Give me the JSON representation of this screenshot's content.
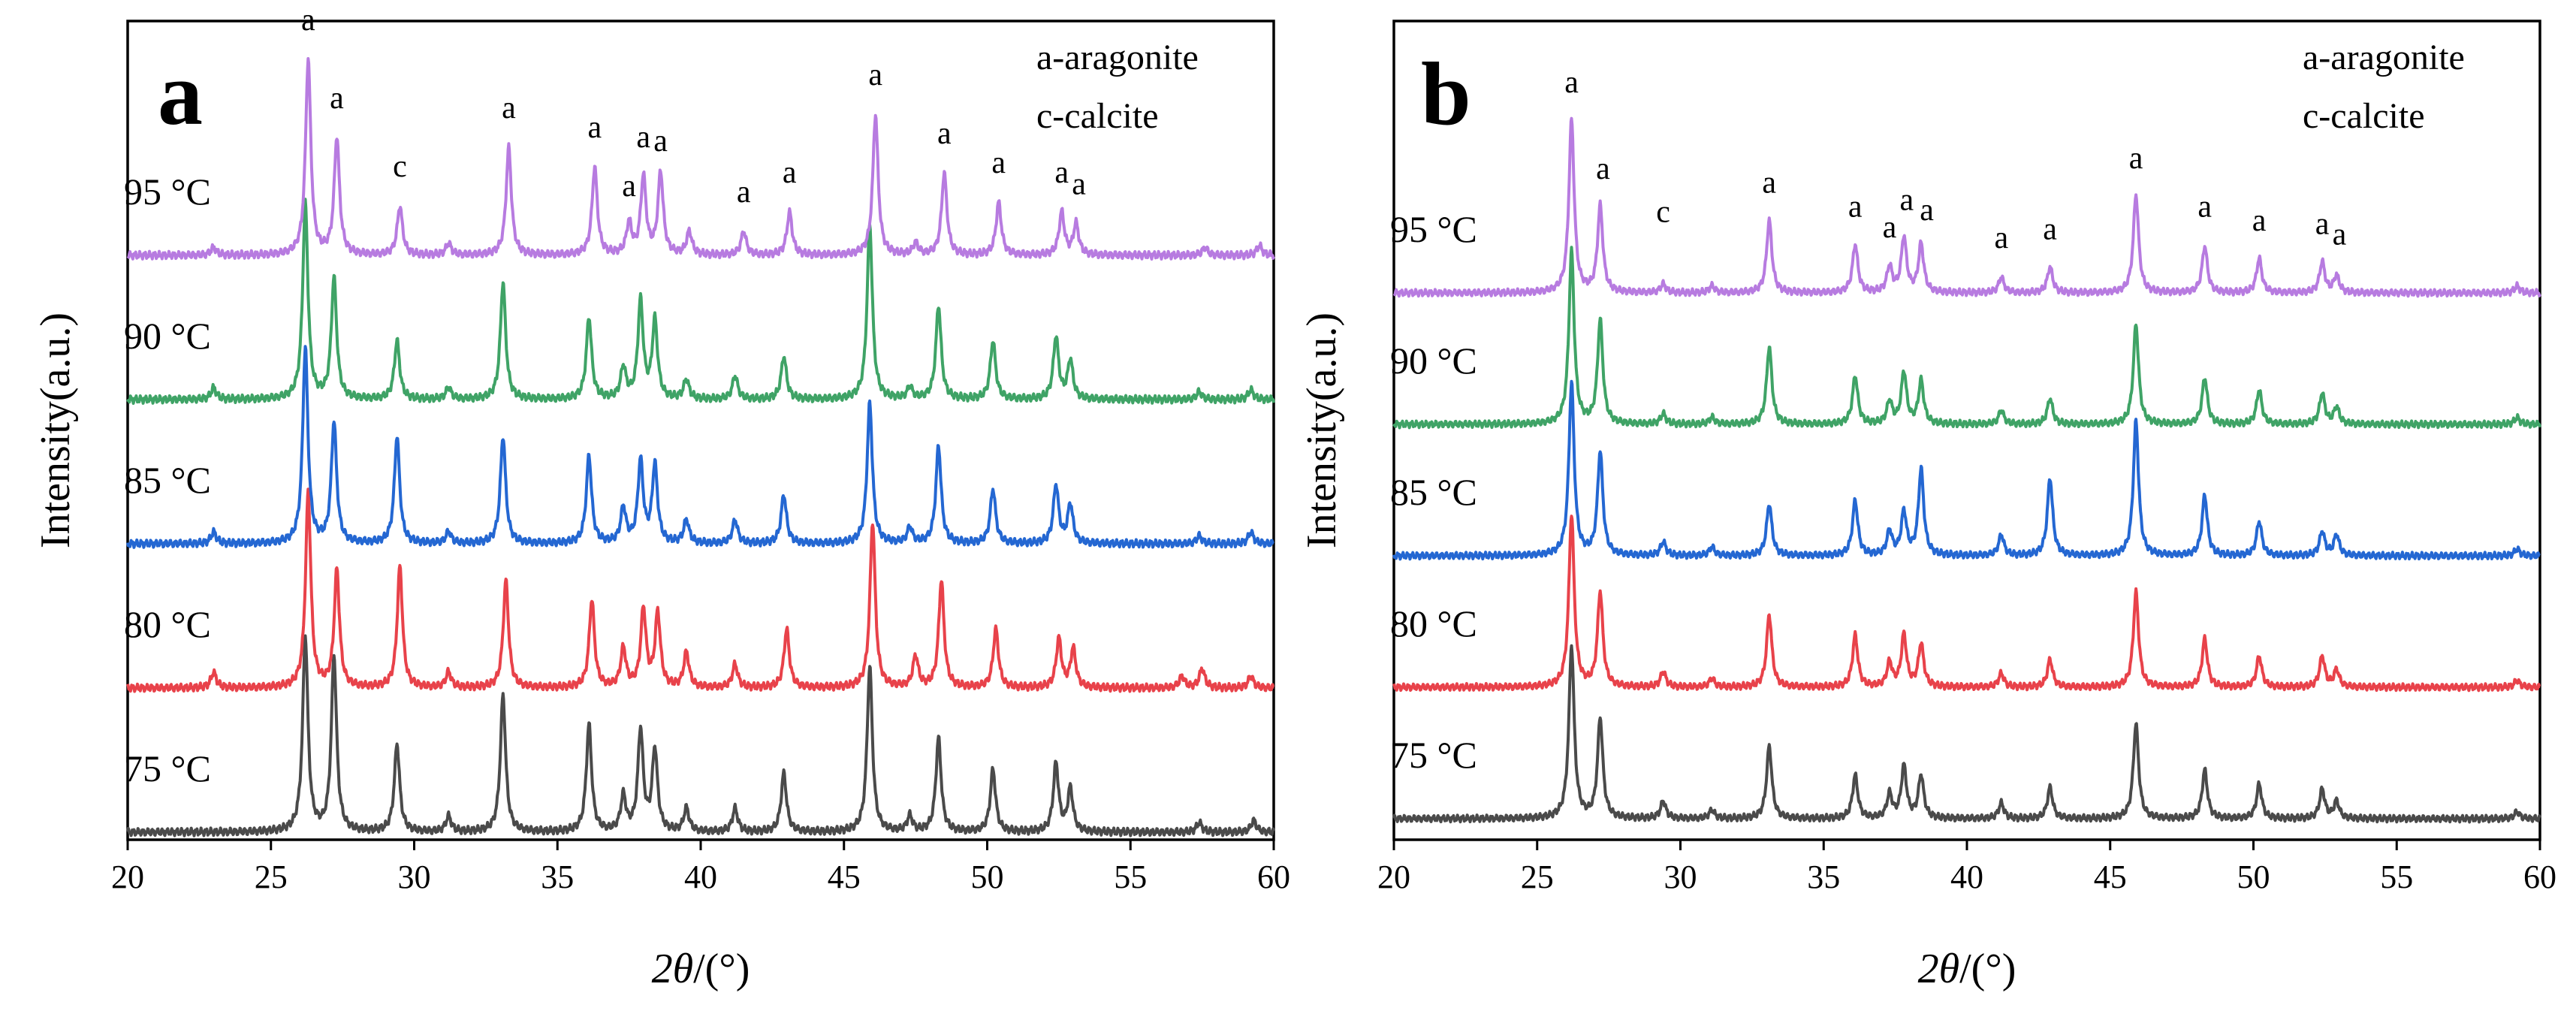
{
  "chart_data": [
    {
      "type": "line",
      "panel_label": "a",
      "xlabel_main": "2",
      "xlabel_theta": "θ",
      "xlabel_unit": "/(°)",
      "ylabel": "Intensity(a.u.)",
      "xlim": [
        20,
        60
      ],
      "xticks": [
        20,
        25,
        30,
        35,
        40,
        45,
        50,
        55,
        60
      ],
      "legend": [
        "a-aragonite",
        "c-calcite"
      ],
      "series": [
        {
          "name": "75 °C",
          "label": "75 °C",
          "color": "#4a4a4a",
          "offset": 0.0,
          "peaks": [
            [
              26.2,
              1.0
            ],
            [
              27.2,
              0.9
            ],
            [
              29.4,
              0.45
            ],
            [
              31.2,
              0.08
            ],
            [
              33.1,
              0.7
            ],
            [
              36.1,
              0.55
            ],
            [
              37.3,
              0.18
            ],
            [
              37.9,
              0.52
            ],
            [
              38.4,
              0.42
            ],
            [
              39.5,
              0.12
            ],
            [
              41.2,
              0.12
            ],
            [
              42.9,
              0.3
            ],
            [
              45.9,
              0.85
            ],
            [
              47.3,
              0.08
            ],
            [
              48.3,
              0.48
            ],
            [
              50.2,
              0.32
            ],
            [
              52.4,
              0.35
            ],
            [
              52.9,
              0.22
            ],
            [
              57.4,
              0.05
            ],
            [
              59.3,
              0.06
            ]
          ]
        },
        {
          "name": "80 °C",
          "label": "80 °C",
          "color": "#e8424a",
          "offset": 1.0,
          "peaks": [
            [
              23.0,
              0.08
            ],
            [
              26.3,
              1.0
            ],
            [
              27.3,
              0.6
            ],
            [
              29.5,
              0.62
            ],
            [
              31.2,
              0.08
            ],
            [
              33.2,
              0.55
            ],
            [
              36.2,
              0.45
            ],
            [
              37.3,
              0.2
            ],
            [
              38.0,
              0.4
            ],
            [
              38.5,
              0.38
            ],
            [
              39.5,
              0.18
            ],
            [
              41.2,
              0.12
            ],
            [
              43.0,
              0.3
            ],
            [
              46.0,
              0.85
            ],
            [
              47.5,
              0.16
            ],
            [
              48.4,
              0.55
            ],
            [
              50.3,
              0.3
            ],
            [
              52.5,
              0.25
            ],
            [
              53.0,
              0.2
            ],
            [
              56.8,
              0.06
            ],
            [
              57.5,
              0.1
            ],
            [
              59.2,
              0.06
            ]
          ]
        },
        {
          "name": "85 °C",
          "label": "85 °C",
          "color": "#2467d2",
          "offset": 2.0,
          "peaks": [
            [
              23.0,
              0.06
            ],
            [
              26.2,
              1.0
            ],
            [
              27.2,
              0.62
            ],
            [
              29.4,
              0.55
            ],
            [
              31.2,
              0.06
            ],
            [
              33.1,
              0.55
            ],
            [
              36.1,
              0.45
            ],
            [
              37.3,
              0.18
            ],
            [
              37.9,
              0.42
            ],
            [
              38.4,
              0.4
            ],
            [
              39.5,
              0.12
            ],
            [
              41.2,
              0.12
            ],
            [
              42.9,
              0.25
            ],
            [
              45.9,
              0.72
            ],
            [
              47.3,
              0.08
            ],
            [
              48.3,
              0.5
            ],
            [
              50.2,
              0.28
            ],
            [
              52.4,
              0.3
            ],
            [
              52.9,
              0.2
            ],
            [
              57.4,
              0.04
            ],
            [
              59.2,
              0.06
            ]
          ]
        },
        {
          "name": "90 °C",
          "label": "90 °C",
          "color": "#3fa366",
          "offset": 3.0,
          "peaks": [
            [
              23.0,
              0.06
            ],
            [
              26.2,
              1.0
            ],
            [
              27.2,
              0.62
            ],
            [
              29.4,
              0.3
            ],
            [
              31.2,
              0.06
            ],
            [
              33.1,
              0.6
            ],
            [
              36.1,
              0.42
            ],
            [
              37.3,
              0.16
            ],
            [
              37.9,
              0.5
            ],
            [
              38.4,
              0.4
            ],
            [
              39.5,
              0.1
            ],
            [
              41.2,
              0.12
            ],
            [
              42.9,
              0.22
            ],
            [
              45.9,
              0.9
            ],
            [
              47.3,
              0.06
            ],
            [
              48.3,
              0.48
            ],
            [
              50.2,
              0.3
            ],
            [
              52.4,
              0.32
            ],
            [
              52.9,
              0.2
            ],
            [
              57.4,
              0.04
            ],
            [
              59.2,
              0.05
            ]
          ]
        },
        {
          "name": "95 °C",
          "label": "95 °C",
          "color": "#b77be0",
          "offset": 4.0,
          "peaks": [
            [
              23.0,
              0.04
            ],
            [
              26.3,
              1.0
            ],
            [
              27.3,
              0.6
            ],
            [
              29.5,
              0.25
            ],
            [
              31.2,
              0.06
            ],
            [
              33.3,
              0.55
            ],
            [
              36.3,
              0.45
            ],
            [
              37.5,
              0.16
            ],
            [
              38.0,
              0.4
            ],
            [
              38.6,
              0.42
            ],
            [
              39.6,
              0.12
            ],
            [
              41.5,
              0.12
            ],
            [
              43.1,
              0.22
            ],
            [
              46.1,
              0.72
            ],
            [
              47.5,
              0.06
            ],
            [
              48.5,
              0.42
            ],
            [
              50.4,
              0.27
            ],
            [
              52.6,
              0.22
            ],
            [
              53.1,
              0.16
            ],
            [
              57.6,
              0.04
            ],
            [
              59.5,
              0.05
            ]
          ]
        }
      ],
      "peak_labels": [
        {
          "x": 26.3,
          "text": "a",
          "level": 1.1
        },
        {
          "x": 27.3,
          "text": "a",
          "level": 0.7
        },
        {
          "x": 29.5,
          "text": "c",
          "level": 0.35
        },
        {
          "x": 33.3,
          "text": "a",
          "level": 0.65
        },
        {
          "x": 36.3,
          "text": "a",
          "level": 0.55
        },
        {
          "x": 37.5,
          "text": "a",
          "level": 0.25
        },
        {
          "x": 38.0,
          "text": "a",
          "level": 0.5
        },
        {
          "x": 38.6,
          "text": "a",
          "level": 0.48
        },
        {
          "x": 41.5,
          "text": "a",
          "level": 0.22
        },
        {
          "x": 43.1,
          "text": "a",
          "level": 0.32
        },
        {
          "x": 46.1,
          "text": "a",
          "level": 0.82
        },
        {
          "x": 48.5,
          "text": "a",
          "level": 0.52
        },
        {
          "x": 50.4,
          "text": "a",
          "level": 0.37
        },
        {
          "x": 52.6,
          "text": "a",
          "level": 0.32
        },
        {
          "x": 53.2,
          "text": "a",
          "level": 0.26
        }
      ]
    },
    {
      "type": "line",
      "panel_label": "b",
      "xlabel_main": "2",
      "xlabel_theta": "θ",
      "xlabel_unit": "/(°)",
      "ylabel": "Intensity(a.u.)",
      "xlim": [
        20,
        60
      ],
      "xticks": [
        20,
        25,
        30,
        35,
        40,
        45,
        50,
        55,
        60
      ],
      "legend": [
        "a-aragonite",
        "c-calcite"
      ],
      "series": [
        {
          "name": "75 °C",
          "label": "75 °C",
          "color": "#4a4a4a",
          "offset": 0.0,
          "peaks": [
            [
              26.2,
              1.0
            ],
            [
              27.2,
              0.58
            ],
            [
              29.4,
              0.1
            ],
            [
              31.1,
              0.05
            ],
            [
              33.1,
              0.42
            ],
            [
              36.1,
              0.25
            ],
            [
              37.3,
              0.14
            ],
            [
              37.8,
              0.3
            ],
            [
              38.4,
              0.25
            ],
            [
              41.2,
              0.09
            ],
            [
              42.9,
              0.18
            ],
            [
              45.9,
              0.55
            ],
            [
              48.3,
              0.28
            ],
            [
              50.2,
              0.2
            ],
            [
              52.4,
              0.17
            ],
            [
              52.9,
              0.1
            ],
            [
              59.2,
              0.04
            ]
          ]
        },
        {
          "name": "80 °C",
          "label": "80 °C",
          "color": "#e8424a",
          "offset": 1.0,
          "peaks": [
            [
              26.2,
              1.0
            ],
            [
              27.2,
              0.55
            ],
            [
              29.4,
              0.09
            ],
            [
              31.1,
              0.05
            ],
            [
              33.1,
              0.42
            ],
            [
              36.1,
              0.3
            ],
            [
              37.3,
              0.14
            ],
            [
              37.8,
              0.3
            ],
            [
              38.4,
              0.25
            ],
            [
              41.2,
              0.08
            ],
            [
              42.9,
              0.16
            ],
            [
              45.9,
              0.55
            ],
            [
              48.3,
              0.28
            ],
            [
              50.2,
              0.18
            ],
            [
              52.4,
              0.18
            ],
            [
              52.9,
              0.1
            ],
            [
              59.2,
              0.04
            ]
          ]
        },
        {
          "name": "85 °C",
          "label": "85 °C",
          "color": "#2467d2",
          "offset": 2.0,
          "peaks": [
            [
              26.2,
              1.0
            ],
            [
              27.2,
              0.6
            ],
            [
              29.4,
              0.08
            ],
            [
              31.1,
              0.05
            ],
            [
              33.1,
              0.3
            ],
            [
              36.1,
              0.32
            ],
            [
              37.3,
              0.14
            ],
            [
              37.8,
              0.25
            ],
            [
              38.4,
              0.5
            ],
            [
              41.2,
              0.12
            ],
            [
              42.9,
              0.45
            ],
            [
              45.9,
              0.78
            ],
            [
              48.3,
              0.35
            ],
            [
              50.2,
              0.2
            ],
            [
              52.4,
              0.14
            ],
            [
              52.9,
              0.12
            ],
            [
              59.2,
              0.04
            ]
          ]
        },
        {
          "name": "90 °C",
          "label": "90 °C",
          "color": "#3fa366",
          "offset": 3.0,
          "peaks": [
            [
              26.2,
              1.0
            ],
            [
              27.2,
              0.6
            ],
            [
              29.4,
              0.06
            ],
            [
              31.1,
              0.04
            ],
            [
              33.1,
              0.45
            ],
            [
              36.1,
              0.28
            ],
            [
              37.3,
              0.13
            ],
            [
              37.8,
              0.3
            ],
            [
              38.4,
              0.25
            ],
            [
              41.2,
              0.08
            ],
            [
              42.9,
              0.15
            ],
            [
              45.9,
              0.58
            ],
            [
              48.3,
              0.27
            ],
            [
              50.2,
              0.2
            ],
            [
              52.4,
              0.18
            ],
            [
              52.9,
              0.1
            ],
            [
              59.2,
              0.04
            ]
          ]
        },
        {
          "name": "95 °C",
          "label": "95 °C",
          "color": "#b77be0",
          "offset": 4.0,
          "peaks": [
            [
              26.2,
              1.0
            ],
            [
              27.2,
              0.5
            ],
            [
              29.4,
              0.05
            ],
            [
              31.1,
              0.04
            ],
            [
              33.1,
              0.42
            ],
            [
              36.1,
              0.28
            ],
            [
              37.3,
              0.15
            ],
            [
              37.8,
              0.32
            ],
            [
              38.4,
              0.28
            ],
            [
              41.2,
              0.09
            ],
            [
              42.9,
              0.15
            ],
            [
              45.9,
              0.57
            ],
            [
              48.3,
              0.27
            ],
            [
              50.2,
              0.2
            ],
            [
              52.4,
              0.18
            ],
            [
              52.9,
              0.1
            ],
            [
              59.2,
              0.04
            ]
          ]
        }
      ],
      "peak_labels": [
        {
          "x": 26.2,
          "text": "a",
          "level": 1.1
        },
        {
          "x": 27.3,
          "text": "a",
          "level": 0.6
        },
        {
          "x": 29.4,
          "text": "c",
          "level": 0.35
        },
        {
          "x": 33.1,
          "text": "a",
          "level": 0.52
        },
        {
          "x": 36.1,
          "text": "a",
          "level": 0.38
        },
        {
          "x": 37.3,
          "text": "a",
          "level": 0.26
        },
        {
          "x": 37.9,
          "text": "a",
          "level": 0.42
        },
        {
          "x": 38.6,
          "text": "a",
          "level": 0.36
        },
        {
          "x": 41.2,
          "text": "a",
          "level": 0.2
        },
        {
          "x": 42.9,
          "text": "a",
          "level": 0.25
        },
        {
          "x": 45.9,
          "text": "a",
          "level": 0.66
        },
        {
          "x": 48.3,
          "text": "a",
          "level": 0.38
        },
        {
          "x": 50.2,
          "text": "a",
          "level": 0.3
        },
        {
          "x": 52.4,
          "text": "a",
          "level": 0.28
        },
        {
          "x": 53.0,
          "text": "a",
          "level": 0.22
        }
      ]
    }
  ]
}
